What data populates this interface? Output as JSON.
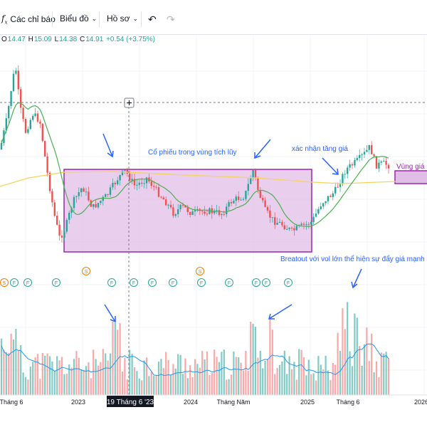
{
  "toolbar": {
    "indicators_label": "Các chỉ báo",
    "chart_type_label": "Biểu đồ",
    "profile_label": "Hồ sơ"
  },
  "ohlc": {
    "o_label": "O",
    "o_value": "14.47",
    "h_label": "H",
    "h_value": "15.09",
    "l_label": "L",
    "l_value": "14.38",
    "c_label": "C",
    "c_value": "14.91",
    "change": "+0.54 (+3.75%)"
  },
  "annotations": {
    "accumulation": "Cổ phiếu trong vùng tích lũy",
    "confirm": "xác nhận tăng giá",
    "zone": "Vùng giá m",
    "breakout": "Breatout với vol lớn thể hiện sự đẩy giá mạnh m"
  },
  "x_axis": {
    "labels": [
      "Tháng 6",
      "2023",
      "2024",
      "Tháng Năm",
      "2025",
      "Tháng 6",
      "2026"
    ],
    "crosshair_label": "19 Tháng 6 '23"
  },
  "event_markers": [
    "S",
    "F",
    "F",
    "F",
    "S",
    "F",
    "F",
    "F",
    "F",
    "S",
    "F",
    "F",
    "F",
    "F",
    "F"
  ],
  "colors": {
    "up": "#26a69a",
    "down": "#ef5350",
    "ma_short": "#4caf50",
    "ma_long": "#f5d35b",
    "box_fill": "#e1bee7",
    "box_stroke": "#9c27b0",
    "annotation_text": "#2962ff",
    "volume_ma": "#2196f3"
  },
  "chart_data": {
    "type": "candlestick",
    "price_axis_visible": false,
    "visible_last_ohlc": {
      "open": 14.47,
      "high": 15.09,
      "low": 14.38,
      "close": 14.91
    },
    "series": [
      {
        "name": "",
        "kind": "candles"
      },
      {
        "name": "",
        "kind": "moving_average"
      },
      {
        "name": "",
        "kind": "moving_average"
      },
      {
        "name": "",
        "kind": "volume"
      }
    ]
  }
}
